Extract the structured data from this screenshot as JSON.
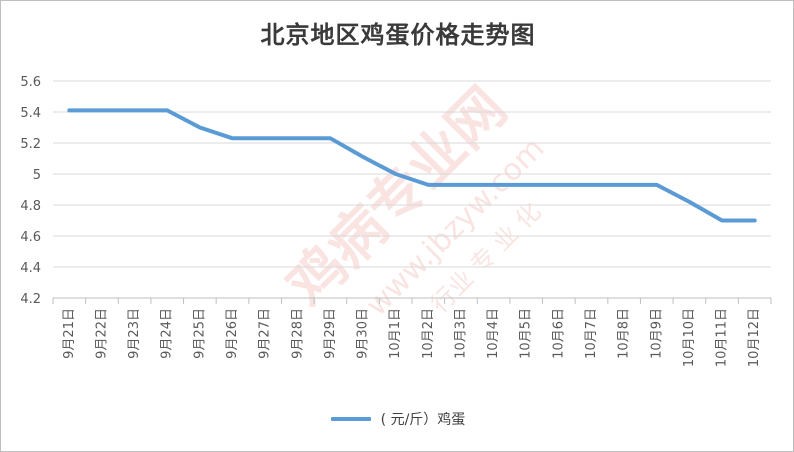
{
  "chart_data": {
    "type": "line",
    "title": "北京地区鸡蛋价格走势图",
    "categories": [
      "9月21日",
      "9月22日",
      "9月23日",
      "9月24日",
      "9月25日",
      "9月26日",
      "9月27日",
      "9月28日",
      "9月29日",
      "9月30日",
      "10月1日",
      "10月2日",
      "10月3日",
      "10月4日",
      "10月5日",
      "10月6日",
      "10月7日",
      "10月8日",
      "10月9日",
      "10月10日",
      "10月11日",
      "10月12日"
    ],
    "series": [
      {
        "name": "( 元/斤）鸡蛋",
        "color": "#5b9bd5",
        "values": [
          5.41,
          5.41,
          5.41,
          5.41,
          5.3,
          5.23,
          5.23,
          5.23,
          5.23,
          5.11,
          5.0,
          4.93,
          4.93,
          4.93,
          4.93,
          4.93,
          4.93,
          4.93,
          4.93,
          4.82,
          4.7,
          4.7
        ]
      }
    ],
    "ylim": [
      4.2,
      5.6
    ],
    "yticks": [
      "4.2",
      "4.4",
      "4.6",
      "4.8",
      "5",
      "5.2",
      "5.4",
      "5.6"
    ],
    "grid": true,
    "legend_position": "bottom"
  },
  "watermark": {
    "text_main": "鸡病专业网",
    "text_url": "www.jbzyw.com",
    "text_sub": "行业 专 业 化"
  }
}
